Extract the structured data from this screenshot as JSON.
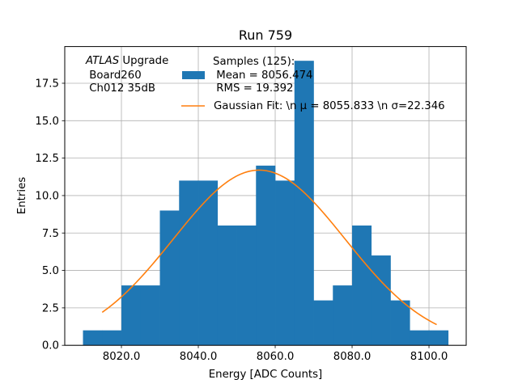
{
  "chart_data": {
    "type": "bar",
    "title": "Run 759",
    "xlabel": "Energy [ADC Counts]",
    "ylabel": "Entries",
    "xlim": [
      8005.26,
      8109.68
    ],
    "ylim": [
      0,
      19.95
    ],
    "grid": true,
    "xticks": [
      8020,
      8040,
      8060,
      8080,
      8100
    ],
    "xtick_labels": [
      "8020.0",
      "8040.0",
      "8060.0",
      "8080.0",
      "8100.0"
    ],
    "yticks": [
      0,
      2.5,
      5,
      7.5,
      10,
      12.5,
      15,
      17.5
    ],
    "ytick_labels": [
      "0.0",
      "2.5",
      "5.0",
      "7.5",
      "10.0",
      "12.5",
      "15.0",
      "17.5"
    ],
    "bin_edges": [
      8010,
      8015,
      8020,
      8025,
      8030,
      8035,
      8040,
      8045,
      8050,
      8055,
      8060,
      8065,
      8070,
      8075,
      8080,
      8085,
      8090,
      8095,
      8100,
      8105
    ],
    "values": [
      1,
      1,
      4,
      4,
      9,
      11,
      11,
      8,
      8,
      12,
      11,
      19,
      3,
      4,
      8,
      6,
      3,
      1,
      1
    ],
    "bar_color": "#1f77b4",
    "fit": {
      "type": "gaussian",
      "amplitude": 11.7,
      "mu": 8055.833,
      "sigma": 22.346,
      "x_range": [
        8015,
        8102
      ],
      "color": "#ff7f0e"
    },
    "legend": {
      "placement": "upper-center",
      "entries": [
        {
          "kind": "patch",
          "lines": [
            "Samples (125):",
            " Mean = 8056.474",
            " RMS = 19.392"
          ]
        },
        {
          "kind": "line",
          "lines": [
            "Gaussian Fit: \\n μ = 8055.833 \\n σ=22.346"
          ]
        }
      ]
    },
    "annotation": {
      "italic": "ATLAS",
      "rest": " Upgrade",
      "lines": [
        " Board260",
        " Ch012 35dB"
      ]
    }
  }
}
